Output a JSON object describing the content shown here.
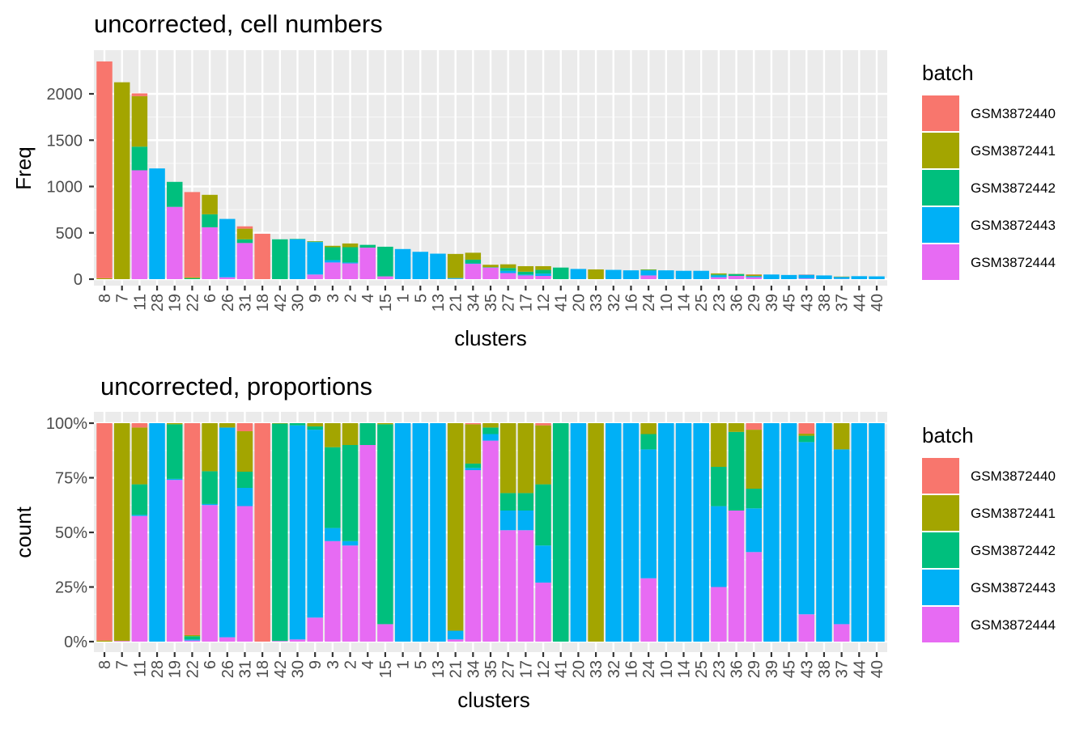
{
  "colors": {
    "panel_bg": "#EBEBEB",
    "grid_major": "#FFFFFF",
    "GSM3872440": "#F8766D",
    "GSM3872441": "#A3A500",
    "GSM3872442": "#00BF7D",
    "GSM3872443": "#00B0F6",
    "GSM3872444": "#E76BF3"
  },
  "chart_data": [
    {
      "type": "bar",
      "stacked": true,
      "title": "uncorrected, cell numbers",
      "xlabel": "clusters",
      "ylabel": "Freq",
      "ylim": [
        0,
        2400
      ],
      "yticks": [
        0,
        500,
        1000,
        1500,
        2000
      ],
      "ytick_labels": [
        "0",
        "500",
        "1000",
        "1500",
        "2000"
      ],
      "grid": true,
      "legend": {
        "title": "batch",
        "position": "right"
      },
      "categories": [
        "8",
        "7",
        "11",
        "28",
        "19",
        "22",
        "6",
        "26",
        "31",
        "18",
        "42",
        "30",
        "9",
        "3",
        "2",
        "4",
        "15",
        "1",
        "5",
        "13",
        "21",
        "34",
        "35",
        "27",
        "17",
        "12",
        "41",
        "20",
        "33",
        "32",
        "16",
        "24",
        "10",
        "14",
        "25",
        "23",
        "36",
        "29",
        "39",
        "45",
        "43",
        "38",
        "37",
        "44",
        "40"
      ],
      "series": [
        {
          "name": "GSM3872440",
          "values": [
            2340,
            0,
            30,
            0,
            0,
            920,
            0,
            0,
            25,
            490,
            0,
            0,
            0,
            0,
            0,
            0,
            0,
            0,
            0,
            0,
            0,
            0,
            0,
            0,
            0,
            0,
            0,
            0,
            0,
            0,
            0,
            0,
            0,
            0,
            0,
            0,
            0,
            3,
            0,
            0,
            3,
            0,
            0,
            0,
            0
          ]
        },
        {
          "name": "GSM3872441",
          "values": [
            10,
            2125,
            545,
            0,
            0,
            10,
            210,
            0,
            115,
            0,
            0,
            0,
            5,
            15,
            40,
            0,
            0,
            0,
            0,
            0,
            260,
            75,
            25,
            40,
            60,
            40,
            0,
            0,
            105,
            0,
            0,
            5,
            0,
            0,
            0,
            12,
            2,
            14,
            0,
            0,
            0,
            0,
            4,
            0,
            0
          ]
        },
        {
          "name": "GSM3872442",
          "values": [
            0,
            0,
            255,
            0,
            270,
            10,
            140,
            0,
            40,
            0,
            430,
            5,
            5,
            140,
            165,
            30,
            320,
            0,
            0,
            0,
            0,
            40,
            5,
            30,
            30,
            40,
            125,
            0,
            0,
            0,
            0,
            5,
            0,
            0,
            0,
            10,
            20,
            4,
            0,
            0,
            0,
            0,
            0,
            0,
            0
          ]
        },
        {
          "name": "GSM3872443",
          "values": [
            0,
            0,
            0,
            1195,
            0,
            0,
            0,
            630,
            0,
            0,
            0,
            430,
            350,
            25,
            10,
            0,
            0,
            325,
            295,
            275,
            10,
            5,
            0,
            25,
            10,
            25,
            0,
            110,
            0,
            100,
            95,
            55,
            95,
            90,
            90,
            20,
            0,
            10,
            50,
            45,
            40,
            40,
            22,
            32,
            30
          ]
        },
        {
          "name": "GSM3872444",
          "values": [
            0,
            0,
            1175,
            0,
            780,
            0,
            560,
            20,
            390,
            0,
            0,
            0,
            50,
            180,
            170,
            340,
            30,
            0,
            0,
            0,
            2,
            165,
            125,
            65,
            40,
            35,
            0,
            0,
            0,
            0,
            0,
            40,
            0,
            0,
            0,
            20,
            35,
            20,
            0,
            0,
            7,
            0,
            2,
            0,
            0
          ]
        }
      ]
    },
    {
      "type": "bar",
      "stacked": true,
      "normalized": true,
      "title": "uncorrected, proportions",
      "xlabel": "clusters",
      "ylabel": "count",
      "ylim": [
        0,
        1
      ],
      "yticks": [
        0,
        0.25,
        0.5,
        0.75,
        1
      ],
      "ytick_labels": [
        "0%",
        "25%",
        "50%",
        "75%",
        "100%"
      ],
      "grid": true,
      "legend": {
        "title": "batch",
        "position": "right"
      },
      "categories": [
        "8",
        "7",
        "11",
        "28",
        "19",
        "22",
        "6",
        "26",
        "31",
        "18",
        "42",
        "30",
        "9",
        "3",
        "2",
        "4",
        "15",
        "1",
        "5",
        "13",
        "21",
        "34",
        "35",
        "27",
        "17",
        "12",
        "41",
        "20",
        "33",
        "32",
        "16",
        "24",
        "10",
        "14",
        "25",
        "23",
        "36",
        "29",
        "39",
        "45",
        "43",
        "38",
        "37",
        "44",
        "40"
      ],
      "series": [
        {
          "name": "GSM3872440",
          "values": [
            0.995,
            0,
            0.02,
            0,
            0,
            0.975,
            0,
            0,
            0.04,
            1,
            0,
            0,
            0,
            0,
            0,
            0,
            0,
            0,
            0,
            0,
            0,
            0.005,
            0,
            0,
            0,
            0.01,
            0,
            0,
            0,
            0,
            0,
            0,
            0,
            0,
            0,
            0,
            0,
            0.03,
            0,
            0,
            0.05,
            0,
            0,
            0,
            0
          ]
        },
        {
          "name": "GSM3872441",
          "values": [
            0.005,
            0.997,
            0.26,
            0,
            0.005,
            0.005,
            0.22,
            0.02,
            0.2,
            0,
            0.002,
            0,
            0.015,
            0.11,
            0.1,
            0,
            0.005,
            0,
            0,
            0,
            0.95,
            0.18,
            0.02,
            0.32,
            0.32,
            0.27,
            0,
            0,
            1,
            0,
            0,
            0.05,
            0,
            0,
            0,
            0.2,
            0.04,
            0.27,
            0,
            0,
            0.01,
            0,
            0.12,
            0,
            0
          ]
        },
        {
          "name": "GSM3872442",
          "values": [
            0,
            0,
            0.14,
            0,
            0.25,
            0.015,
            0.15,
            0,
            0.08,
            0,
            0.995,
            0.01,
            0.015,
            0.37,
            0.44,
            0.1,
            0.915,
            0,
            0,
            0,
            0,
            0.02,
            0.03,
            0.08,
            0.08,
            0.28,
            1,
            0,
            0,
            0,
            0,
            0.07,
            0,
            0,
            0,
            0.18,
            0.36,
            0.09,
            0,
            0,
            0.03,
            0,
            0,
            0,
            0
          ]
        },
        {
          "name": "GSM3872443",
          "values": [
            0,
            0,
            0.005,
            1,
            0.005,
            0.005,
            0.005,
            0.96,
            0.09,
            0,
            0,
            0.98,
            0.86,
            0.06,
            0.02,
            0,
            0,
            1,
            1,
            1,
            0.04,
            0.01,
            0.03,
            0.09,
            0.09,
            0.17,
            0,
            1,
            0,
            1,
            1,
            0.59,
            1,
            1,
            1,
            0.37,
            0,
            0.2,
            1,
            1,
            0.82,
            1,
            0.8,
            1,
            1
          ]
        },
        {
          "name": "GSM3872444",
          "values": [
            0,
            0.003,
            0.575,
            0,
            0.74,
            0.005,
            0.625,
            0.02,
            0.67,
            0,
            0.003,
            0.01,
            0.11,
            0.46,
            0.44,
            0.9,
            0.08,
            0,
            0,
            0,
            0.01,
            0.785,
            0.92,
            0.51,
            0.51,
            0.27,
            0,
            0,
            0,
            0,
            0,
            0.29,
            0,
            0,
            0,
            0.25,
            0.6,
            0.41,
            0,
            0,
            0.13,
            0,
            0.08,
            0,
            0
          ]
        }
      ]
    }
  ]
}
